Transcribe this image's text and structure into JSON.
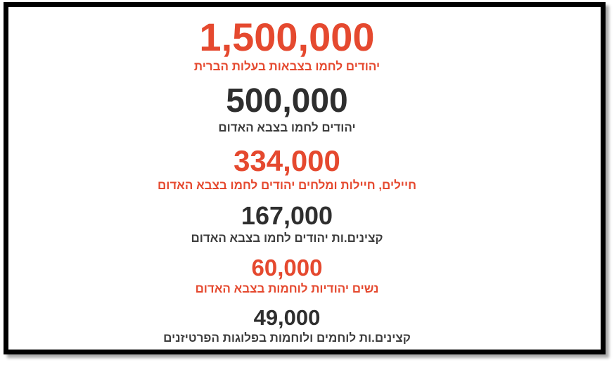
{
  "colors": {
    "accent_red": "#e5492f",
    "dark": "#2e2e2e",
    "dark_label": "#3d3d3d",
    "border": "#000000",
    "shadow": "#ababab",
    "background": "#ffffff"
  },
  "stats": [
    {
      "value": "1,500,000",
      "label": "יהודים לחמו בצבאות בעלות הברית",
      "emphasis": "red"
    },
    {
      "value": "500,000",
      "label": "יהודים לחמו בצבא האדום",
      "emphasis": "dark"
    },
    {
      "value": "334,000",
      "label": "חיילים, חיילות ומלחים יהודים לחמו בצבא האדום",
      "emphasis": "red"
    },
    {
      "value": "167,000",
      "label": "קצינים.ות יהודים לחמו בצבא האדום",
      "emphasis": "dark"
    },
    {
      "value": "60,000",
      "label": "נשים יהודיות לוחמות בצבא האדום",
      "emphasis": "red"
    },
    {
      "value": "49,000",
      "label": "קצינים.ות לוחמים ולוחמות בפלוגות הפרטיזנים",
      "emphasis": "dark"
    }
  ],
  "chart_data": {
    "type": "table",
    "title": "",
    "categories": [
      "יהודים לחמו בצבאות בעלות הברית",
      "יהודים לחמו בצבא האדום",
      "חיילים, חיילות ומלחים יהודים לחמו בצבא האדום",
      "קצינים.ות יהודים לחמו בצבא האדום",
      "נשים יהודיות לוחמות בצבא האדום",
      "קצינים.ות לוחמים ולוחמות בפלוגות הפרטיזנים"
    ],
    "values": [
      1500000,
      500000,
      334000,
      167000,
      60000,
      49000
    ],
    "value_colors": [
      "#e5492f",
      "#2e2e2e",
      "#e5492f",
      "#2e2e2e",
      "#e5492f",
      "#2e2e2e"
    ],
    "layout": "vertical list of large numbers with captions, sizes proportional to rank, framed by black picture border with drop shadow"
  }
}
